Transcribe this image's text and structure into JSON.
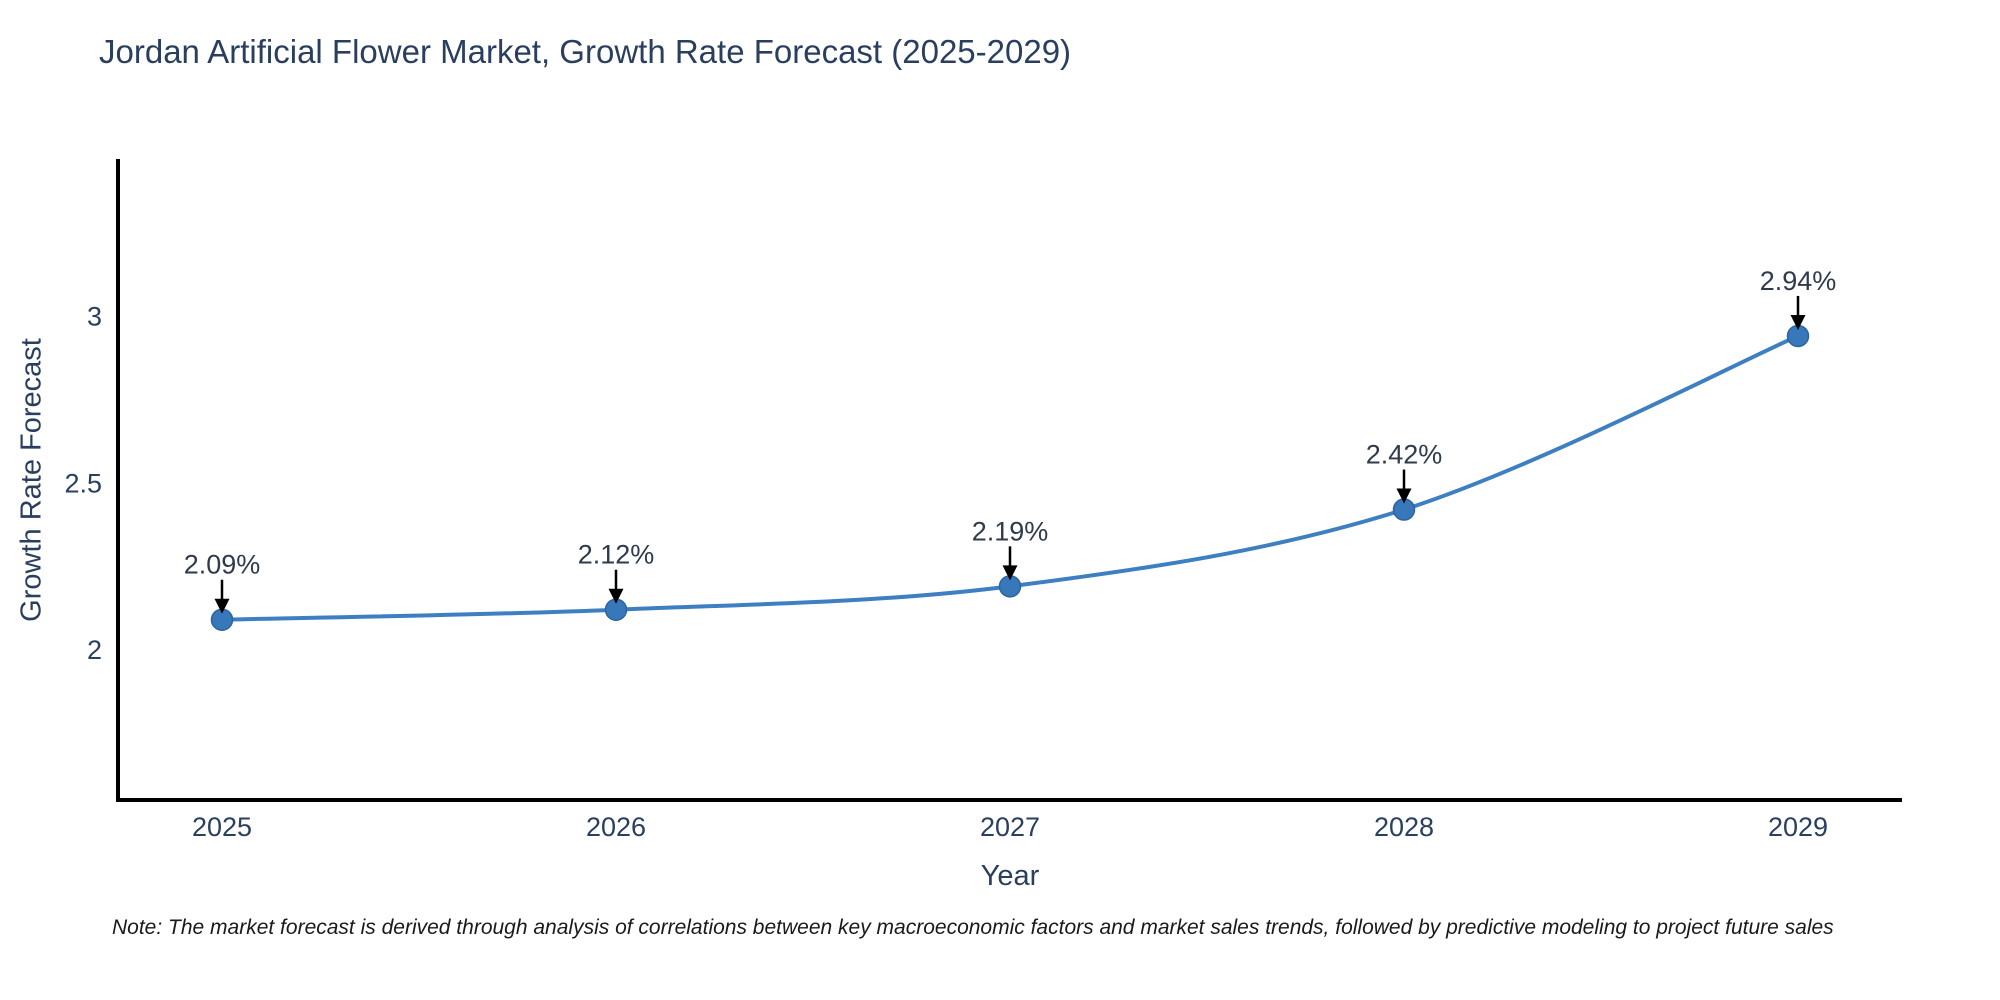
{
  "title": "Jordan Artificial Flower Market, Growth Rate Forecast (2025-2029)",
  "note": "Note: The market forecast is derived through analysis of correlations between key macroeconomic factors and market sales trends, followed by predictive modeling to project future sales",
  "chart_data": {
    "type": "line",
    "x": [
      "2025",
      "2026",
      "2027",
      "2028",
      "2029"
    ],
    "values": [
      2.09,
      2.12,
      2.19,
      2.42,
      2.94
    ],
    "point_labels": [
      "2.09%",
      "2.12%",
      "2.19%",
      "2.42%",
      "2.94%"
    ],
    "title": "Jordan Artificial Flower Market, Growth Rate Forecast (2025-2029)",
    "xlabel": "Year",
    "ylabel": "Growth Rate Forecast",
    "yticks": [
      2,
      2.5,
      3
    ],
    "ytick_labels": [
      "2",
      "2.5",
      "3"
    ],
    "ylim": [
      1.55,
      3.47
    ],
    "line_shape": "spline",
    "grid": false,
    "legend": "none",
    "colors": {
      "line": "#3e7fc1",
      "marker_fill": "#3878ba",
      "marker_edge": "#2b649f",
      "axis": "#000000",
      "tick_text": "#2a3f5f",
      "annotation_text": "#2f3b4c",
      "annotation_arrow": "#000000"
    }
  }
}
